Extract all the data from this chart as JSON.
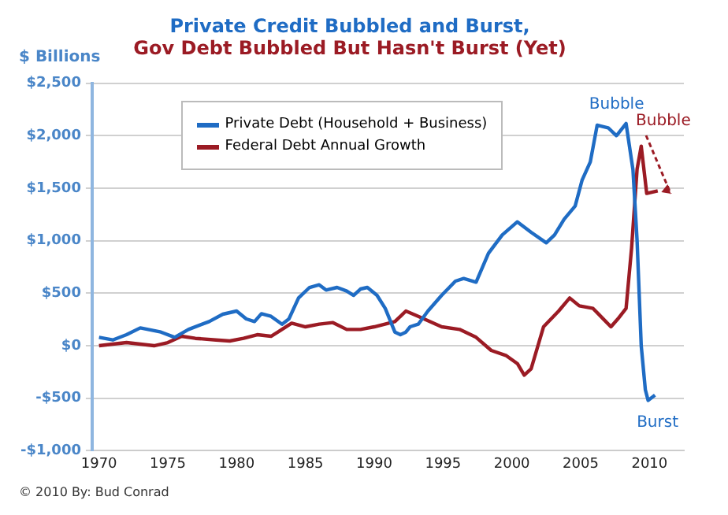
{
  "chart_data": {
    "type": "line",
    "title": "Private Credit Bubbled and Burst,",
    "subtitle": "Gov Debt Bubbled But Hasn't Burst (Yet)",
    "ylabel": "$ Billions",
    "xlim": [
      1969.5,
      2012.5
    ],
    "xticks": [
      1970,
      1975,
      1980,
      1985,
      1990,
      1995,
      2000,
      2005,
      2010
    ],
    "ylim": [
      -1000,
      2500
    ],
    "yticks": [
      {
        "value": -1000,
        "label": "-$1,000"
      },
      {
        "value": -500,
        "label": "-$500"
      },
      {
        "value": 0,
        "label": "$0"
      },
      {
        "value": 500,
        "label": "$500"
      },
      {
        "value": 1000,
        "label": "$1,000"
      },
      {
        "value": 1500,
        "label": "$1,500"
      },
      {
        "value": 2000,
        "label": "$2,000"
      },
      {
        "value": 2500,
        "label": "$2,500"
      }
    ],
    "grid": "y",
    "legend": "top left",
    "marker": "none",
    "line_style": "solid",
    "series": [
      {
        "name": "Private Debt (Household + Business)",
        "color": "#1f6cc4",
        "x": [
          1970,
          1971,
          1972,
          1973,
          1974.5,
          1975.5,
          1976.5,
          1978,
          1979,
          1980,
          1980.7,
          1981.3,
          1981.8,
          1982.5,
          1983.3,
          1983.8,
          1984.5,
          1985.3,
          1986,
          1986.5,
          1987.3,
          1988,
          1988.5,
          1989,
          1989.5,
          1990.2,
          1990.8,
          1991.5,
          1991.9,
          1992.3,
          1992.6,
          1993.2,
          1993.9,
          1994.9,
          1995.9,
          1996.5,
          1997.4,
          1998.3,
          1999.3,
          2000.4,
          2001.4,
          2002.5,
          2003.1,
          2003.8,
          2004.6,
          2005.1,
          2005.7,
          2006.2,
          2007,
          2007.6,
          2008.3,
          2008.8,
          2009.1,
          2009.4,
          2009.7,
          2009.9,
          2010.4
        ],
        "values": [
          80,
          55,
          105,
          170,
          130,
          80,
          155,
          230,
          300,
          330,
          255,
          230,
          305,
          280,
          205,
          255,
          455,
          555,
          580,
          530,
          555,
          520,
          480,
          540,
          555,
          480,
          355,
          130,
          105,
          130,
          180,
          205,
          330,
          480,
          615,
          640,
          605,
          880,
          1055,
          1180,
          1080,
          980,
          1055,
          1205,
          1330,
          1575,
          1750,
          2100,
          2075,
          2000,
          2115,
          1675,
          1000,
          0,
          -420,
          -520,
          -470
        ]
      },
      {
        "name": "Federal Debt Annual Growth",
        "color": "#9b1b24",
        "x": [
          1970,
          1972,
          1974,
          1975,
          1976,
          1977,
          1978.5,
          1979.5,
          1980.5,
          1981.5,
          1982.5,
          1983,
          1984,
          1985,
          1986,
          1987,
          1988,
          1989,
          1990,
          1991.5,
          1992.3,
          1993.2,
          1994.9,
          1996.2,
          1997.4,
          1998.5,
          1999.6,
          2000.4,
          2000.9,
          2001.4,
          2002.3,
          2003.4,
          2004.2,
          2004.9,
          2005.9,
          2007.2,
          2007.7,
          2008.3,
          2008.7,
          2009.1,
          2009.4,
          2009.8,
          2010.6
        ],
        "values": [
          0,
          30,
          0,
          30,
          90,
          70,
          55,
          45,
          70,
          105,
          90,
          130,
          215,
          180,
          205,
          220,
          155,
          155,
          180,
          230,
          330,
          280,
          180,
          155,
          80,
          -45,
          -95,
          -170,
          -280,
          -220,
          180,
          330,
          455,
          380,
          355,
          180,
          255,
          355,
          930,
          1680,
          1900,
          1450,
          1475
        ]
      }
    ],
    "annotations": [
      "Bubble",
      "Bubble",
      "Burst",
      "© 2010 By: Bud Conrad"
    ]
  }
}
